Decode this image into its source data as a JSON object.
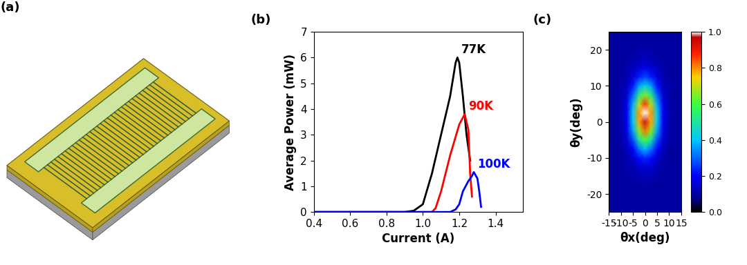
{
  "chart_data": [
    {
      "type": "diagram",
      "title": "(a)"
    },
    {
      "type": "line",
      "title": "(b)",
      "x_label": "Current (A)",
      "y_label": "Average Power (mW)",
      "xlim": [
        0.4,
        1.55
      ],
      "xticks": [
        0.4,
        0.6,
        0.8,
        1.0,
        1.2,
        1.4
      ],
      "ylim": [
        0,
        7
      ],
      "yticks": [
        0,
        1,
        2,
        3,
        4,
        5,
        6,
        7
      ],
      "series": [
        {
          "name": "77K",
          "color": "#000000",
          "x": [
            0.4,
            0.6,
            0.8,
            0.9,
            0.95,
            1.0,
            1.05,
            1.1,
            1.15,
            1.18,
            1.19,
            1.2,
            1.22,
            1.24,
            1.26
          ],
          "values": [
            0,
            0,
            0,
            0,
            0.05,
            0.3,
            1.5,
            3.0,
            4.5,
            5.8,
            6.0,
            5.8,
            4.5,
            3.0,
            2.0
          ]
        },
        {
          "name": "90K",
          "color": "#ff0000",
          "x": [
            0.4,
            0.6,
            0.8,
            1.0,
            1.05,
            1.07,
            1.1,
            1.15,
            1.2,
            1.23,
            1.25,
            1.26,
            1.27
          ],
          "values": [
            0,
            0,
            0,
            0,
            0,
            0.15,
            0.8,
            2.2,
            3.4,
            3.8,
            3.2,
            1.5,
            0.6
          ]
        },
        {
          "name": "100K",
          "color": "#0000ff",
          "x": [
            0.4,
            0.6,
            0.8,
            1.0,
            1.15,
            1.18,
            1.2,
            1.22,
            1.25,
            1.27,
            1.28,
            1.3,
            1.31,
            1.32
          ],
          "values": [
            0,
            0,
            0,
            0,
            0,
            0.1,
            0.3,
            0.8,
            1.2,
            1.4,
            1.55,
            1.3,
            0.8,
            0.2
          ]
        }
      ]
    },
    {
      "type": "heatmap",
      "title": "(c)",
      "x_label": "θx(deg)",
      "y_label": "θy(deg)",
      "xlim": [
        -15,
        15
      ],
      "xticks": [
        -15,
        -10,
        -5,
        0,
        5,
        10,
        15
      ],
      "ylim": [
        -25,
        25
      ],
      "yticks": [
        -20,
        -10,
        0,
        10,
        20
      ],
      "x": [
        -15,
        -12.5,
        -10,
        -7.5,
        -5,
        -2.5,
        0,
        2.5,
        5,
        7.5,
        10,
        12.5,
        15
      ],
      "y": [
        -25,
        -22.5,
        -20,
        -17.5,
        -15,
        -12.5,
        -10,
        -7.5,
        -5,
        -2.5,
        0,
        2.5,
        5,
        7.5,
        10,
        12.5,
        15,
        17.5,
        20,
        22.5,
        25
      ],
      "cells": [
        [
          0.1,
          0.1,
          0.1,
          0.1,
          0.1,
          0.1,
          0.1,
          0.1,
          0.1,
          0.1,
          0.1,
          0.1,
          0.1
        ],
        [
          0.1,
          0.1,
          0.1,
          0.1,
          0.1,
          0.1,
          0.1,
          0.1,
          0.1,
          0.1,
          0.1,
          0.1,
          0.1
        ],
        [
          0.1,
          0.1,
          0.1,
          0.1,
          0.1,
          0.1,
          0.1,
          0.1,
          0.1,
          0.1,
          0.1,
          0.1,
          0.1
        ],
        [
          0.1,
          0.1,
          0.1,
          0.1,
          0.1,
          0.1,
          0.11,
          0.1,
          0.1,
          0.1,
          0.1,
          0.1,
          0.1
        ],
        [
          0.1,
          0.1,
          0.1,
          0.1,
          0.11,
          0.12,
          0.12,
          0.12,
          0.11,
          0.1,
          0.1,
          0.1,
          0.1
        ],
        [
          0.1,
          0.1,
          0.1,
          0.11,
          0.12,
          0.15,
          0.16,
          0.15,
          0.12,
          0.11,
          0.1,
          0.1,
          0.1
        ],
        [
          0.1,
          0.1,
          0.1,
          0.11,
          0.15,
          0.21,
          0.24,
          0.21,
          0.15,
          0.11,
          0.1,
          0.1,
          0.1
        ],
        [
          0.1,
          0.1,
          0.1,
          0.13,
          0.2,
          0.32,
          0.39,
          0.32,
          0.2,
          0.13,
          0.1,
          0.1,
          0.1
        ],
        [
          0.1,
          0.1,
          0.11,
          0.15,
          0.28,
          0.49,
          0.6,
          0.49,
          0.28,
          0.15,
          0.11,
          0.1,
          0.1
        ],
        [
          0.1,
          0.1,
          0.11,
          0.17,
          0.36,
          0.66,
          0.82,
          0.66,
          0.36,
          0.17,
          0.11,
          0.1,
          0.1
        ],
        [
          0.1,
          0.1,
          0.11,
          0.19,
          0.41,
          0.78,
          0.97,
          0.78,
          0.41,
          0.19,
          0.11,
          0.1,
          0.1
        ],
        [
          0.1,
          0.1,
          0.12,
          0.19,
          0.42,
          0.79,
          1.0,
          0.79,
          0.42,
          0.19,
          0.12,
          0.1,
          0.1
        ],
        [
          0.1,
          0.1,
          0.11,
          0.18,
          0.37,
          0.69,
          0.86,
          0.69,
          0.37,
          0.18,
          0.11,
          0.1,
          0.1
        ],
        [
          0.1,
          0.1,
          0.11,
          0.15,
          0.3,
          0.53,
          0.65,
          0.53,
          0.3,
          0.15,
          0.11,
          0.1,
          0.1
        ],
        [
          0.1,
          0.1,
          0.11,
          0.13,
          0.22,
          0.36,
          0.43,
          0.36,
          0.22,
          0.13,
          0.11,
          0.1,
          0.1
        ],
        [
          0.1,
          0.1,
          0.1,
          0.12,
          0.16,
          0.23,
          0.27,
          0.23,
          0.16,
          0.12,
          0.1,
          0.1,
          0.1
        ],
        [
          0.1,
          0.1,
          0.1,
          0.11,
          0.13,
          0.16,
          0.17,
          0.16,
          0.13,
          0.11,
          0.1,
          0.1,
          0.1
        ],
        [
          0.1,
          0.1,
          0.1,
          0.1,
          0.11,
          0.12,
          0.13,
          0.12,
          0.11,
          0.1,
          0.1,
          0.1,
          0.1
        ],
        [
          0.1,
          0.1,
          0.1,
          0.1,
          0.1,
          0.11,
          0.11,
          0.11,
          0.1,
          0.1,
          0.1,
          0.1,
          0.1
        ],
        [
          0.1,
          0.1,
          0.1,
          0.1,
          0.1,
          0.1,
          0.1,
          0.1,
          0.1,
          0.1,
          0.1,
          0.1,
          0.1
        ],
        [
          0.1,
          0.1,
          0.1,
          0.1,
          0.1,
          0.1,
          0.1,
          0.1,
          0.1,
          0.1,
          0.1,
          0.1,
          0.1
        ]
      ],
      "colorbar_range": [
        0,
        1
      ],
      "colorbar_ticks": [
        {
          "value": 0,
          "label": "0.0"
        },
        0.2,
        0.4,
        0.6,
        0.8,
        {
          "value": 1,
          "label": "1.0"
        }
      ]
    }
  ]
}
